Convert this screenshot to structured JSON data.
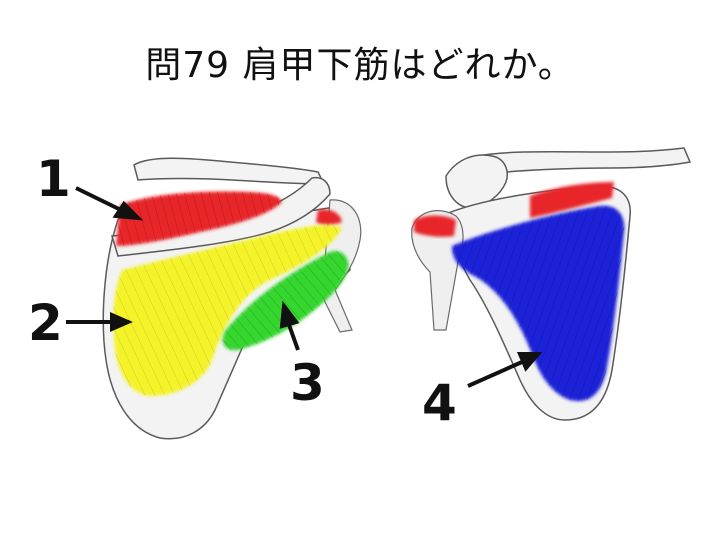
{
  "title": "問79 肩甲下筋はどれか。",
  "labels": [
    "1",
    "2",
    "3",
    "4"
  ],
  "colors": {
    "red": "#e8262a",
    "yellow": "#f4f32a",
    "green": "#35d62f",
    "blue": "#1a20d8",
    "bone": "#f3f3f3",
    "outline": "#5a5a5a",
    "arrow": "#111111"
  }
}
